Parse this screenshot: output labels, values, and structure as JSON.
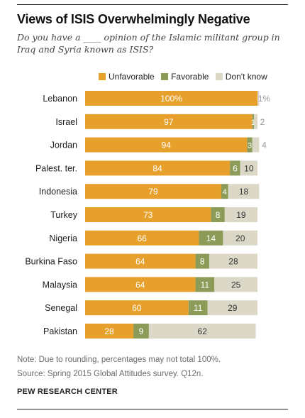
{
  "header": {
    "title": "Views of ISIS Overwhelmingly Negative",
    "subtitle": "Do you have a ____ opinion of the Islamic militant group in Iraq and Syria known as ISIS?"
  },
  "legend": {
    "unfavorable": "Unfavorable",
    "favorable": "Favorable",
    "dont_know": "Don't know"
  },
  "colors": {
    "unfavorable": "#e8a02d",
    "favorable": "#8c9c58",
    "dont_know": "#dcd8c8",
    "label_on_dark": "#ffffff",
    "label_on_light": "#333333",
    "outside_label": "#999999"
  },
  "chart_data": {
    "type": "bar",
    "orientation": "horizontal",
    "stacked": true,
    "categories": [
      "Lebanon",
      "Israel",
      "Jordan",
      "Palest. ter.",
      "Indonesia",
      "Turkey",
      "Nigeria",
      "Burkina Faso",
      "Malaysia",
      "Senegal",
      "Pakistan"
    ],
    "series": [
      {
        "name": "Unfavorable",
        "values": [
          100,
          97,
          94,
          84,
          79,
          73,
          66,
          64,
          64,
          60,
          28
        ],
        "labels": [
          "100%",
          "97",
          "94",
          "84",
          "79",
          "73",
          "66",
          "64",
          "64",
          "60",
          "28"
        ]
      },
      {
        "name": "Favorable",
        "values": [
          0,
          1,
          3,
          6,
          4,
          8,
          14,
          8,
          11,
          11,
          9
        ],
        "labels": [
          "",
          "1",
          "3",
          "6",
          "4",
          "8",
          "14",
          "8",
          "11",
          "11",
          "9"
        ]
      },
      {
        "name": "Don't know",
        "values": [
          1,
          2,
          4,
          10,
          18,
          19,
          20,
          28,
          25,
          29,
          62
        ],
        "labels": [
          "1%",
          "2",
          "4",
          "10",
          "18",
          "19",
          "20",
          "28",
          "25",
          "29",
          "62"
        ]
      }
    ],
    "xlim": [
      0,
      100
    ],
    "legend_position": "top",
    "grid": false
  },
  "footer": {
    "note": "Note: Due to rounding, percentages may not total 100%.",
    "source": "Source: Spring 2015 Global Attitudes survey. Q12n.",
    "org": "PEW RESEARCH CENTER"
  }
}
